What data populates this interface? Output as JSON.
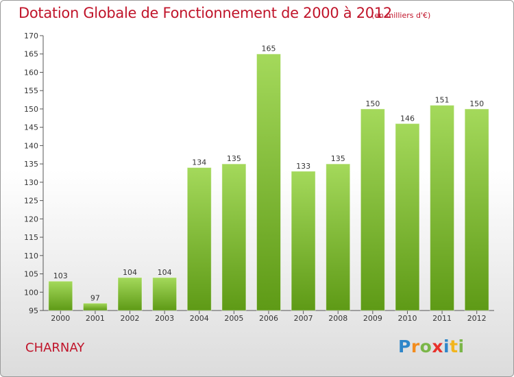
{
  "chart_data": {
    "type": "bar",
    "title": "Dotation Globale de Fonctionnement de 2000 à 2012",
    "subtitle": "(en milliers d'€)",
    "categories": [
      "2000",
      "2001",
      "2002",
      "2003",
      "2004",
      "2005",
      "2006",
      "2007",
      "2008",
      "2009",
      "2010",
      "2011",
      "2012"
    ],
    "values": [
      103,
      97,
      104,
      104,
      134,
      135,
      165,
      133,
      135,
      150,
      146,
      151,
      150
    ],
    "ylim": [
      95,
      170
    ],
    "yticks": [
      95,
      100,
      105,
      110,
      115,
      120,
      125,
      130,
      135,
      140,
      145,
      150,
      155,
      160,
      165,
      170
    ],
    "xlabel": "",
    "ylabel": "",
    "grid": false,
    "legend": "none",
    "colors": {
      "bar_top": "#9fd456",
      "bar_bottom": "#5e9a16",
      "title": "#c0142a"
    }
  },
  "town": "CHARNAY",
  "logo": "Proxiti"
}
